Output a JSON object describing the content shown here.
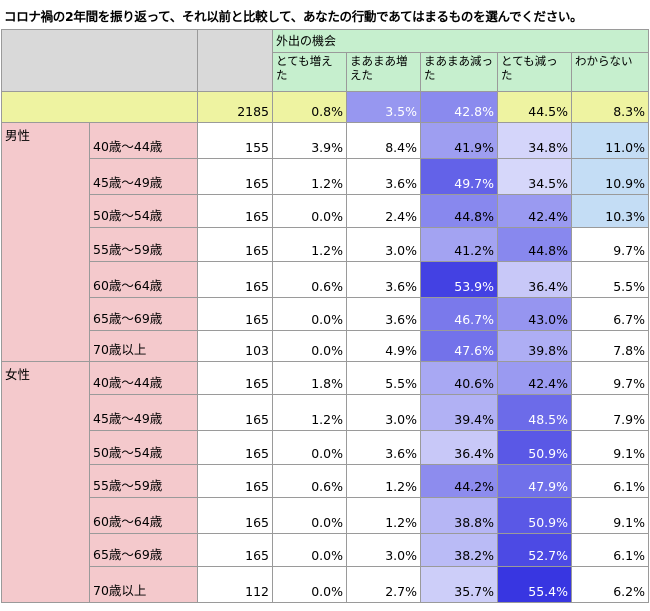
{
  "title": "コロナ禍の2年間を振り返って、それ以前と比較して、あなたの行動であてはまるものを選んでください。",
  "group_header": "外出の機会",
  "columns": [
    "とても増えた",
    "まあまあ増えた",
    "まあまあ減った",
    "とても減った",
    "わからない"
  ],
  "total": {
    "n": "2185",
    "values": [
      "0.8%",
      "3.5%",
      "42.8%",
      "44.5%",
      "8.3%"
    ]
  },
  "groups": [
    {
      "label": "男性",
      "rows": [
        {
          "age": "40歳～44歳",
          "n": "155",
          "values": [
            "3.9%",
            "8.4%",
            "41.9%",
            "34.8%",
            "11.0%"
          ]
        },
        {
          "age": "45歳～49歳",
          "n": "165",
          "values": [
            "1.2%",
            "3.6%",
            "49.7%",
            "34.5%",
            "10.9%"
          ]
        },
        {
          "age": "50歳～54歳",
          "n": "165",
          "values": [
            "0.0%",
            "2.4%",
            "44.8%",
            "42.4%",
            "10.3%"
          ]
        },
        {
          "age": "55歳～59歳",
          "n": "165",
          "values": [
            "1.2%",
            "3.0%",
            "41.2%",
            "44.8%",
            "9.7%"
          ]
        },
        {
          "age": "60歳～64歳",
          "n": "165",
          "values": [
            "0.6%",
            "3.6%",
            "53.9%",
            "36.4%",
            "5.5%"
          ]
        },
        {
          "age": "65歳～69歳",
          "n": "165",
          "values": [
            "0.0%",
            "3.6%",
            "46.7%",
            "43.0%",
            "6.7%"
          ]
        },
        {
          "age": "70歳以上",
          "n": "103",
          "values": [
            "0.0%",
            "4.9%",
            "47.6%",
            "39.8%",
            "7.8%"
          ]
        }
      ]
    },
    {
      "label": "女性",
      "rows": [
        {
          "age": "40歳～44歳",
          "n": "165",
          "values": [
            "1.8%",
            "5.5%",
            "40.6%",
            "42.4%",
            "9.7%"
          ]
        },
        {
          "age": "45歳～49歳",
          "n": "165",
          "values": [
            "1.2%",
            "3.0%",
            "39.4%",
            "48.5%",
            "7.9%"
          ]
        },
        {
          "age": "50歳～54歳",
          "n": "165",
          "values": [
            "0.0%",
            "3.6%",
            "36.4%",
            "50.9%",
            "9.1%"
          ]
        },
        {
          "age": "55歳～59歳",
          "n": "165",
          "values": [
            "0.6%",
            "1.2%",
            "44.2%",
            "47.9%",
            "6.1%"
          ]
        },
        {
          "age": "60歳～64歳",
          "n": "165",
          "values": [
            "0.0%",
            "1.2%",
            "38.8%",
            "50.9%",
            "9.1%"
          ]
        },
        {
          "age": "65歳～69歳",
          "n": "165",
          "values": [
            "0.0%",
            "3.0%",
            "38.2%",
            "52.7%",
            "6.1%"
          ]
        },
        {
          "age": "70歳以上",
          "n": "112",
          "values": [
            "0.0%",
            "2.7%",
            "35.7%",
            "55.4%",
            "6.2%"
          ]
        }
      ]
    }
  ],
  "highlight_colors": {
    "heat_min": "#dadbfb",
    "heat_max": "#3331e0",
    "high_unknown": "#c4ddf5"
  }
}
